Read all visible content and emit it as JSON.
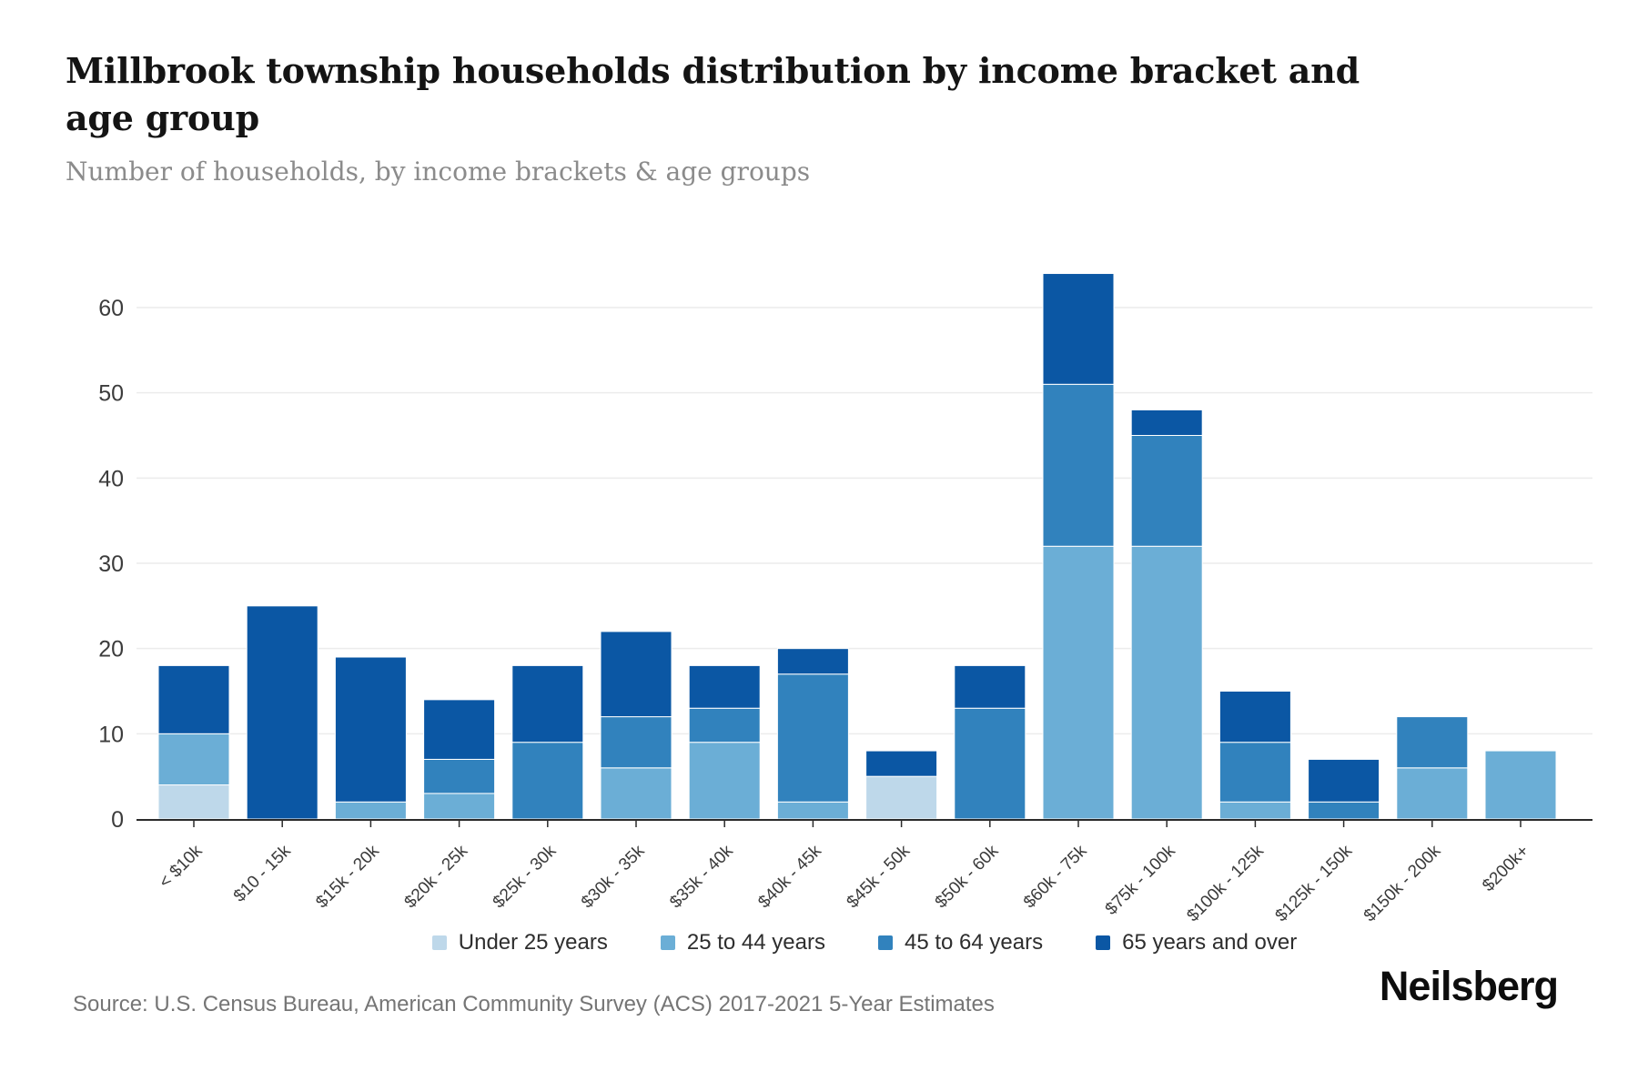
{
  "header": {
    "title": "Millbrook township households distribution by income bracket and age group",
    "subtitle": "Number of households, by income brackets & age groups"
  },
  "chart_data": {
    "type": "bar",
    "stacked": true,
    "title": "Millbrook township households distribution by income bracket and age group",
    "xlabel": "",
    "ylabel": "",
    "categories": [
      "< $10k",
      "$10 - 15k",
      "$15k - 20k",
      "$20k - 25k",
      "$25k - 30k",
      "$30k - 35k",
      "$35k - 40k",
      "$40k - 45k",
      "$45k - 50k",
      "$50k - 60k",
      "$60k - 75k",
      "$75k - 100k",
      "$100k - 125k",
      "$125k - 150k",
      "$150k - 200k",
      "$200k+"
    ],
    "series": [
      {
        "name": "Under 25 years",
        "color": "#bed8ea",
        "values": [
          4,
          0,
          0,
          0,
          0,
          0,
          0,
          0,
          5,
          0,
          0,
          0,
          0,
          0,
          0,
          0
        ]
      },
      {
        "name": "25 to 44 years",
        "color": "#6baed6",
        "values": [
          6,
          0,
          2,
          3,
          0,
          6,
          9,
          2,
          0,
          0,
          32,
          32,
          2,
          0,
          6,
          8
        ]
      },
      {
        "name": "45 to 64 years",
        "color": "#3182bd",
        "values": [
          0,
          0,
          0,
          4,
          9,
          6,
          4,
          15,
          0,
          13,
          19,
          13,
          7,
          2,
          6,
          0
        ]
      },
      {
        "name": "65 years and over",
        "color": "#0b57a4",
        "values": [
          8,
          25,
          17,
          7,
          9,
          10,
          5,
          3,
          3,
          5,
          13,
          3,
          6,
          5,
          0,
          0
        ]
      }
    ],
    "totals": [
      18,
      25,
      19,
      14,
      18,
      22,
      18,
      20,
      8,
      18,
      64,
      48,
      15,
      7,
      12,
      8
    ],
    "yticks": [
      0,
      10,
      20,
      30,
      40,
      50,
      60
    ],
    "ylim": [
      0,
      64
    ],
    "grid": true,
    "legend_position": "bottom"
  },
  "footer": {
    "source": "Source: U.S. Census Bureau, American Community Survey (ACS) 2017-2021 5-Year Estimates",
    "logo": "Neilsberg"
  }
}
